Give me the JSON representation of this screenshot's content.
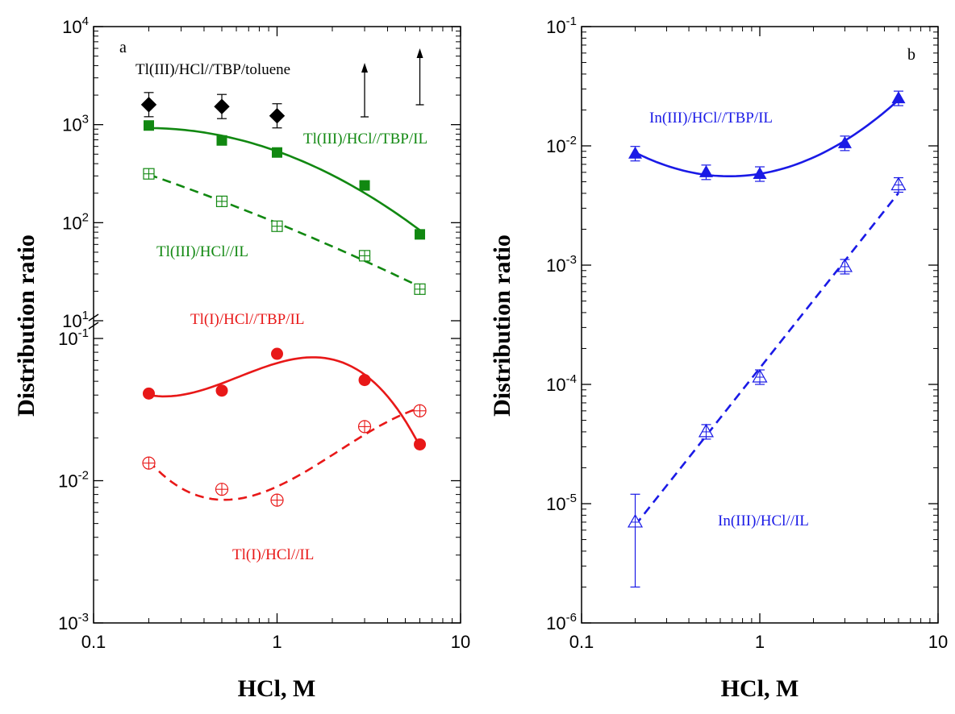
{
  "chart_data": [
    {
      "panel": "a",
      "type": "scatter",
      "xlabel": "HCl, M",
      "ylabel": "Distribution ratio",
      "x_scale": "log",
      "y_scale": "log (broken axis)",
      "xlim": [
        0.1,
        10
      ],
      "x_ticks": [
        "0.1",
        "1",
        "10"
      ],
      "y_upper_range": [
        10,
        10000
      ],
      "y_lower_range": [
        0.001,
        0.1
      ],
      "y_ticks": [
        "10^4",
        "10^3",
        "10^2",
        "10^1",
        "10^-1",
        "10^-2",
        "10^-3"
      ],
      "series": [
        {
          "name": "Tl(III)/HCl//TBP/toluene",
          "color": "#000000",
          "marker": "diamond-filled",
          "fit": "none",
          "x": [
            0.2,
            0.5,
            1.0
          ],
          "y": [
            1600,
            1530,
            1230
          ],
          "lower_bound_arrows_x": [
            3.0,
            6.0
          ]
        },
        {
          "name": "Tl(III)/HCl//TBP/IL",
          "color": "#118811",
          "marker": "square-filled",
          "fit": "solid",
          "x": [
            0.2,
            0.5,
            1.0,
            3.0,
            6.0
          ],
          "y": [
            980,
            690,
            520,
            240,
            76
          ]
        },
        {
          "name": "Tl(III)/HCl//IL",
          "color": "#118811",
          "marker": "square-crossed",
          "fit": "dashed",
          "x": [
            0.2,
            0.5,
            1.0,
            3.0,
            6.0
          ],
          "y": [
            315,
            165,
            92,
            46,
            21
          ]
        },
        {
          "name": "Tl(I)/HCl//TBP/IL",
          "color": "#e81818",
          "marker": "circle-filled",
          "fit": "solid",
          "x": [
            0.2,
            0.5,
            1.0,
            3.0,
            6.0
          ],
          "y": [
            0.041,
            0.043,
            0.078,
            0.051,
            0.018
          ]
        },
        {
          "name": "Tl(I)/HCl//IL",
          "color": "#e81818",
          "marker": "circle-crossed",
          "fit": "dashed",
          "x": [
            0.2,
            0.5,
            1.0,
            3.0,
            6.0
          ],
          "y": [
            0.0133,
            0.0087,
            0.0073,
            0.024,
            0.031
          ]
        }
      ]
    },
    {
      "panel": "b",
      "type": "scatter",
      "xlabel": "HCl, M",
      "ylabel": "Distribution ratio",
      "x_scale": "log",
      "y_scale": "log",
      "xlim": [
        0.1,
        10
      ],
      "ylim": [
        1e-06,
        0.1
      ],
      "x_ticks": [
        "0.1",
        "1",
        "10"
      ],
      "y_ticks": [
        "10^-1",
        "10^-2",
        "10^-3",
        "10^-4",
        "10^-5",
        "10^-6"
      ],
      "series": [
        {
          "name": "In(III)/HCl//TBP/IL",
          "color": "#1a1ae6",
          "marker": "triangle-filled",
          "fit": "solid",
          "x": [
            0.2,
            0.5,
            1.0,
            3.0,
            6.0
          ],
          "y": [
            0.0086,
            0.006,
            0.0058,
            0.0105,
            0.025
          ]
        },
        {
          "name": "In(III)/HCl//IL",
          "color": "#1a1ae6",
          "marker": "triangle-crossed",
          "fit": "dashed",
          "x": [
            0.2,
            0.5,
            1.0,
            3.0,
            6.0
          ],
          "y": [
            7e-06,
            4e-05,
            0.000115,
            0.00097,
            0.0047
          ],
          "error_low": [
            2e-06,
            null,
            null,
            null,
            null
          ],
          "error_high": [
            1.2e-05,
            null,
            null,
            null,
            null
          ]
        }
      ]
    }
  ]
}
